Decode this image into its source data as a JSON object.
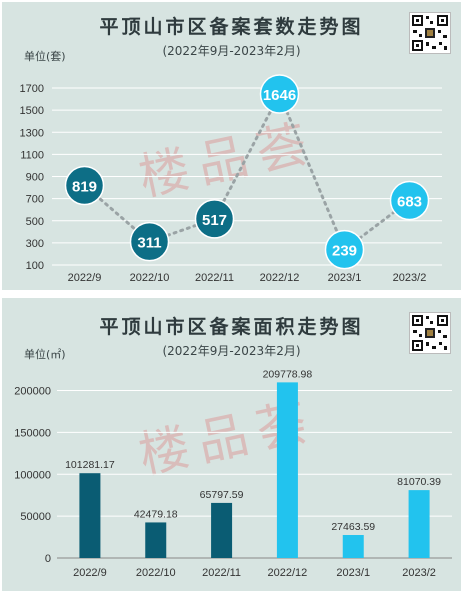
{
  "charts": [
    {
      "title": "平顶山市区备案套数走势图",
      "subtitle": "(2022年9月-2023年2月)",
      "unit_label": "单位(套)",
      "watermark": "楼品荟"
    },
    {
      "title": "平顶山市区备案面积走势图",
      "subtitle": "(2022年9月-2023年2月)",
      "unit_label": "单位(㎡)",
      "watermark": "楼品荟"
    }
  ],
  "chart_data": [
    {
      "type": "line",
      "categories": [
        "2022/9",
        "2022/10",
        "2022/11",
        "2022/12",
        "2023/1",
        "2023/2"
      ],
      "series": [
        {
          "values": [
            819,
            311,
            517,
            1646,
            239,
            683
          ]
        }
      ],
      "yticks": [
        100,
        300,
        500,
        700,
        900,
        1100,
        1300,
        1500,
        1700
      ],
      "ylim": [
        100,
        1800
      ],
      "grid": true,
      "marker_colors": [
        "#0d6e86",
        "#0d6e86",
        "#0d6e86",
        "#22c3ee",
        "#22c3ee",
        "#22c3ee"
      ],
      "line_color": "#9aa3a5"
    },
    {
      "type": "bar",
      "categories": [
        "2022/9",
        "2022/10",
        "2022/11",
        "2022/12",
        "2023/1",
        "2023/2"
      ],
      "series": [
        {
          "values": [
            101281.17,
            42479.18,
            65797.59,
            209778.98,
            27463.59,
            81070.39
          ]
        }
      ],
      "value_labels": [
        "101281.17",
        "42479.18",
        "65797.59",
        "209778.98",
        "27463.59",
        "81070.39"
      ],
      "yticks": [
        0,
        50000,
        100000,
        150000,
        200000
      ],
      "ylim": [
        0,
        215000
      ],
      "grid": true,
      "bar_colors": [
        "#0a5c73",
        "#0a5c73",
        "#0a5c73",
        "#22c3ee",
        "#22c3ee",
        "#22c3ee"
      ]
    }
  ]
}
